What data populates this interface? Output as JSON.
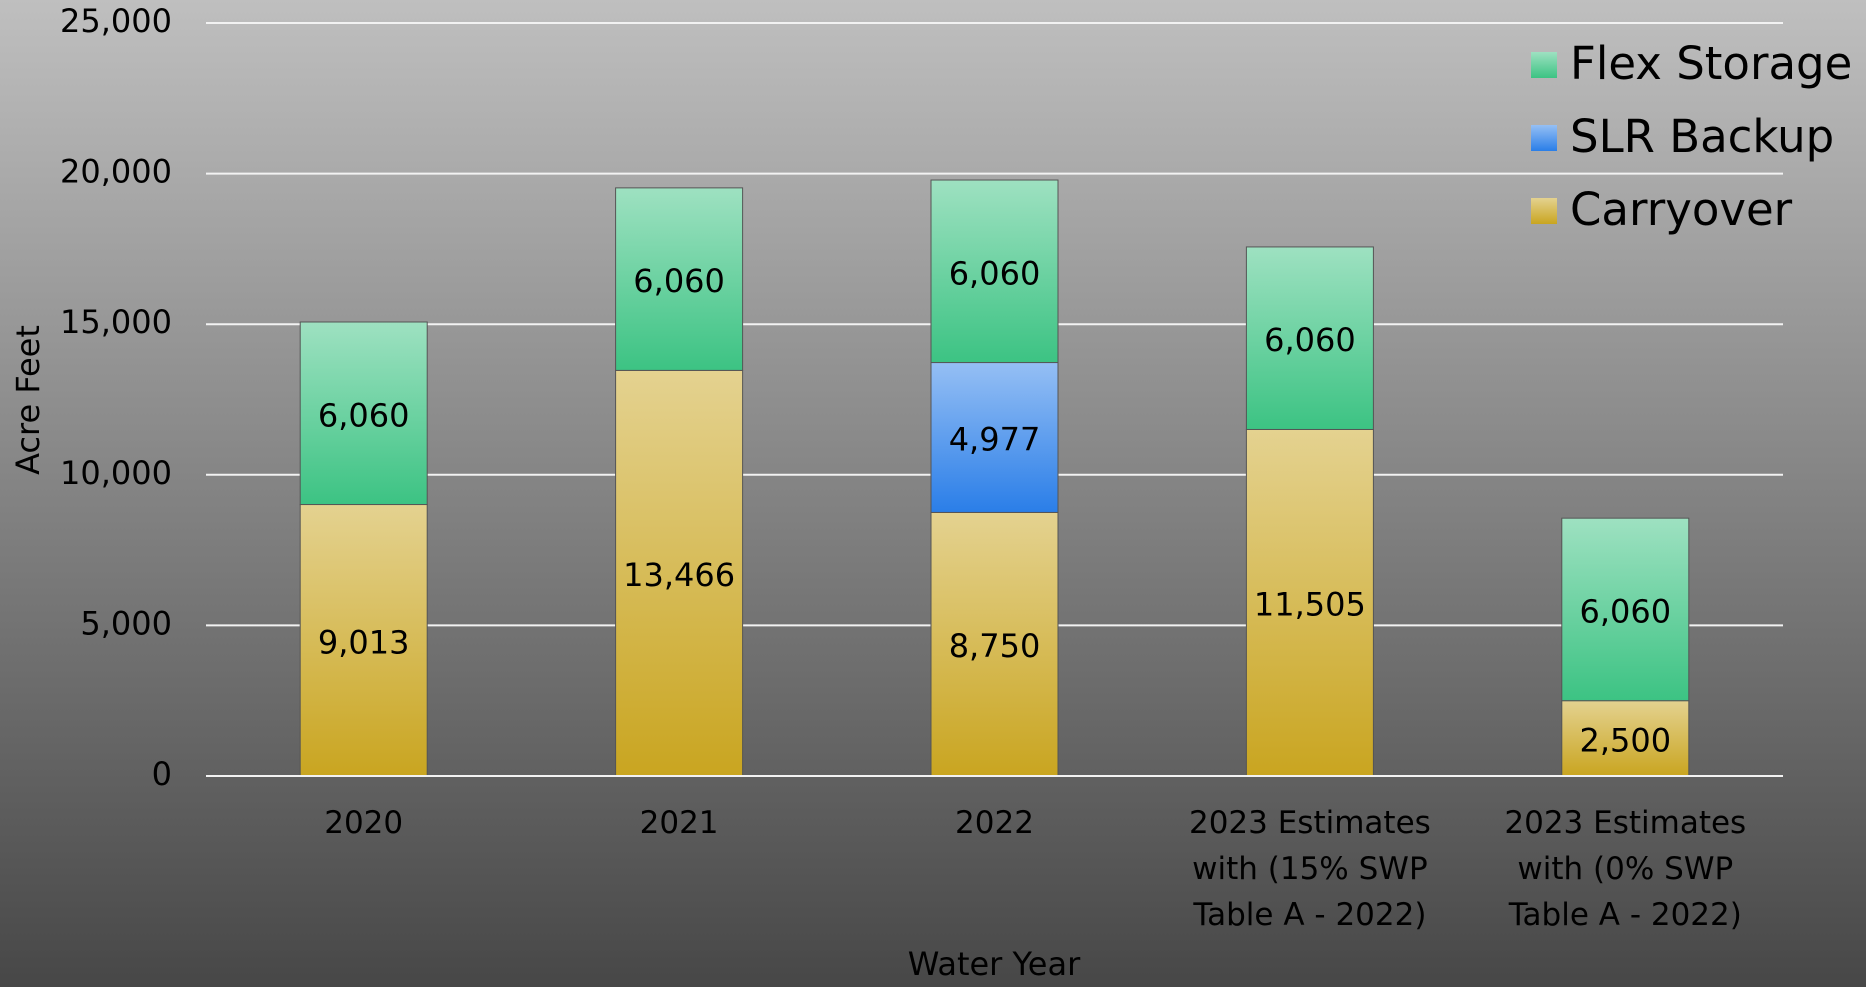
{
  "chart_data": {
    "type": "stacked-bar",
    "x_label": "Water Year",
    "y_label": "Acre Feet",
    "categories": [
      "2020",
      "2021",
      "2022",
      "2023 Estimates with (15% SWP Table A - 2022)",
      "2023 Estimates with (0% SWP Table A - 2022)"
    ],
    "series": [
      {
        "name": "Carryover",
        "color": "#c9a520",
        "values": [
          9013,
          13466,
          8750,
          11505,
          2500
        ],
        "value_labels": [
          "9,013",
          "13,466",
          "8,750",
          "11,505",
          "2,500"
        ]
      },
      {
        "name": "SLR Backup",
        "color": "#2a7ee8",
        "values": [
          null,
          null,
          4977,
          null,
          null
        ],
        "value_labels": [
          null,
          null,
          "4,977",
          null,
          null
        ]
      },
      {
        "name": "Flex Storage",
        "color": "#3cc383",
        "values": [
          6060,
          6060,
          6060,
          6060,
          6060
        ],
        "value_labels": [
          "6,060",
          "6,060",
          "6,060",
          "6,060",
          "6,060"
        ]
      }
    ],
    "ylim": [
      0,
      25000
    ],
    "yticks": [
      0,
      {
        "value": 5000,
        "label": "5,000"
      },
      {
        "value": 10000,
        "label": "10,000"
      },
      {
        "value": 15000,
        "label": "15,000"
      },
      {
        "value": 20000,
        "label": "20,000"
      },
      {
        "value": 25000,
        "label": "25,000"
      }
    ],
    "grid": true,
    "legend": "top-right"
  }
}
